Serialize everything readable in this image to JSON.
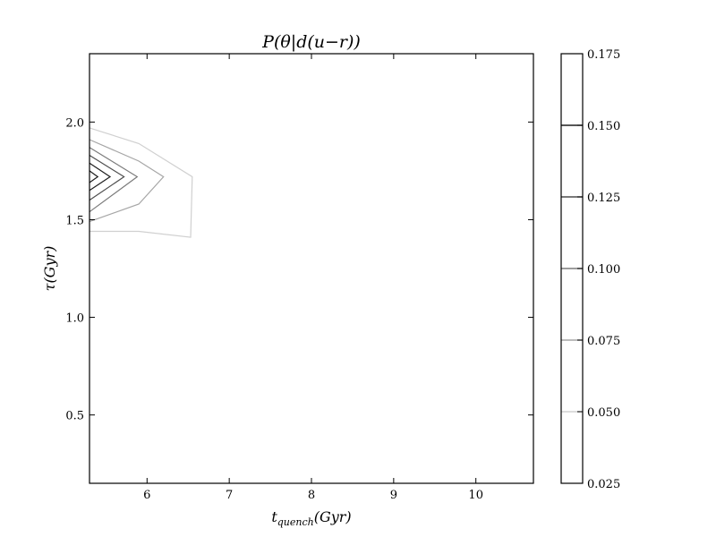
{
  "chart_data": {
    "type": "contour",
    "title": "P(θ|d(u−r))",
    "xlabel": "t_quench(Gyr)",
    "xlabel_main": "t",
    "xlabel_sub": "quench",
    "xlabel_tail": "(Gyr)",
    "ylabel": "τ(Gyr)",
    "xlim": [
      5.3,
      10.7
    ],
    "ylim": [
      0.15,
      2.35
    ],
    "x_ticks": [
      6,
      7,
      8,
      9,
      10
    ],
    "y_ticks": [
      0.5,
      1.0,
      1.5,
      2.0
    ],
    "x_tick_labels": [
      "6",
      "7",
      "8",
      "9",
      "10"
    ],
    "y_tick_labels": [
      "0.5",
      "1.0",
      "1.5",
      "2.0"
    ],
    "grid": false,
    "colorbar": {
      "min": 0.025,
      "max": 0.175,
      "levels": [
        0.025,
        0.05,
        0.075,
        0.1,
        0.125,
        0.15,
        0.175
      ],
      "tick_labels": [
        "0.025",
        "0.050",
        "0.075",
        "0.100",
        "0.125",
        "0.150",
        "0.175"
      ],
      "line_levels": [
        0.05,
        0.075,
        0.1,
        0.125,
        0.15
      ],
      "line_colors": [
        "#d0d0d0",
        "#a6a6a6",
        "#7b7b7b",
        "#4e4e4e",
        "#1e1e1e"
      ]
    },
    "contours": [
      {
        "level": 0.05,
        "color": "#d0d0d0",
        "points": [
          [
            5.3,
            1.97
          ],
          [
            5.9,
            1.89
          ],
          [
            6.55,
            1.72
          ],
          [
            6.53,
            1.41
          ],
          [
            5.9,
            1.44
          ],
          [
            5.3,
            1.44
          ]
        ]
      },
      {
        "level": 0.075,
        "color": "#a6a6a6",
        "points": [
          [
            5.3,
            1.91
          ],
          [
            5.9,
            1.8
          ],
          [
            6.2,
            1.72
          ],
          [
            5.9,
            1.58
          ],
          [
            5.3,
            1.49
          ]
        ]
      },
      {
        "level": 0.1,
        "color": "#7b7b7b",
        "points": [
          [
            5.3,
            1.87
          ],
          [
            5.88,
            1.72
          ],
          [
            5.3,
            1.54
          ]
        ]
      },
      {
        "level": 0.125,
        "color": "#4e4e4e",
        "points": [
          [
            5.3,
            1.83
          ],
          [
            5.72,
            1.72
          ],
          [
            5.3,
            1.6
          ]
        ]
      },
      {
        "level": 0.15,
        "color": "#1e1e1e",
        "points": [
          [
            5.3,
            1.79
          ],
          [
            5.55,
            1.72
          ],
          [
            5.3,
            1.65
          ]
        ]
      },
      {
        "level": 0.15,
        "color": "#1e1e1e",
        "points": [
          [
            5.3,
            1.75
          ],
          [
            5.4,
            1.72
          ],
          [
            5.3,
            1.69
          ]
        ]
      }
    ]
  }
}
